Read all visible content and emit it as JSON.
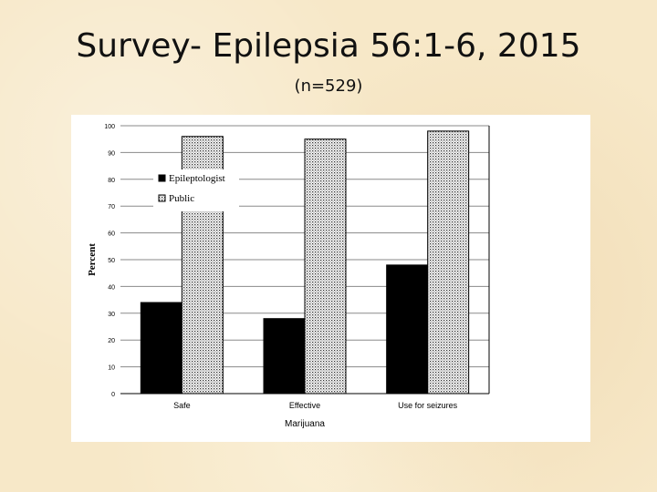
{
  "slide": {
    "title": "Survey- Epilepsia 56:1-6, 2015",
    "subtitle": "(n=529)"
  },
  "chart_data": {
    "type": "bar",
    "title": "",
    "xlabel": "Marijuana",
    "ylabel": "Percent",
    "ylim": [
      0,
      100
    ],
    "yticks": [
      0,
      10,
      20,
      30,
      40,
      50,
      60,
      70,
      80,
      90,
      100
    ],
    "grid": true,
    "legend_position": "top-left",
    "categories": [
      "Safe",
      "Effective",
      "Use for seizures"
    ],
    "series": [
      {
        "name": "Epileptologist",
        "values": [
          34,
          28,
          48
        ],
        "color": "#000000",
        "pattern": "solid"
      },
      {
        "name": "Public",
        "values": [
          96,
          95,
          98
        ],
        "color": "#ffffff",
        "pattern": "dotted"
      }
    ]
  }
}
